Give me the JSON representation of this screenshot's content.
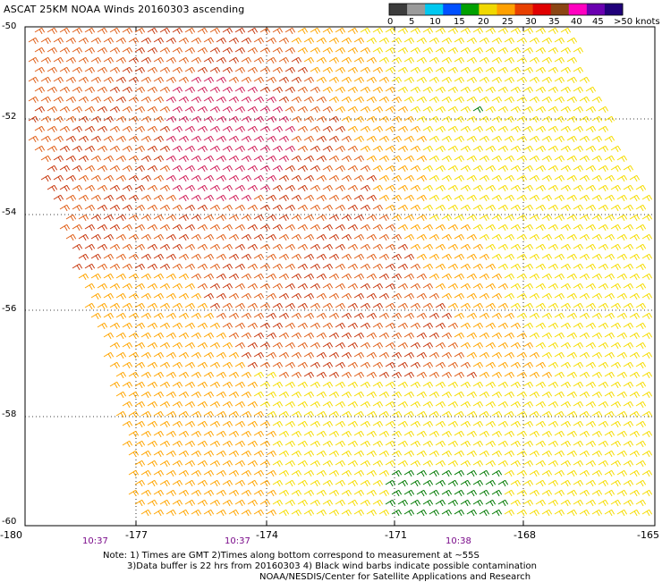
{
  "title": "ASCAT 25KM NOAA Winds 20160303 ascending",
  "legend": {
    "labels": [
      "0",
      "5",
      "10",
      "15",
      "20",
      "25",
      "30",
      "35",
      "40",
      "45",
      ">50 knots"
    ],
    "colors": [
      "#3c3c3c",
      "#9a9a9a",
      "#00c8f0",
      "#0050ff",
      "#00a000",
      "#f0d800",
      "#ffa000",
      "#e84000",
      "#e00000",
      "#8b4513",
      "#ff00c0",
      "#6a00b0",
      "#20007a"
    ]
  },
  "axes": {
    "lat_labels": [
      "-50",
      "-52",
      "-54",
      "-56",
      "-58",
      "-60"
    ],
    "lon_labels": [
      "-180",
      "-177",
      "-174",
      "-171",
      "-168",
      "-165"
    ]
  },
  "times": [
    "10:37",
    "10:37",
    "10:38"
  ],
  "notes": {
    "line1": "Note: 1) Times are GMT 2)Times along bottom correspond to measurement at ~55S",
    "line2": "3)Data buffer is 22 hrs from 20160303 4) Black wind barbs indicate possible contamination",
    "line3": "NOAA/NESDIS/Center for Satellite Applications and Research"
  },
  "barb_colors": {
    "light": "#f5dc00",
    "mid": "#ffa500",
    "strong": "#e0601a",
    "stronger": "#c83a10",
    "peak": "#d0205a",
    "green": "#007a00"
  }
}
